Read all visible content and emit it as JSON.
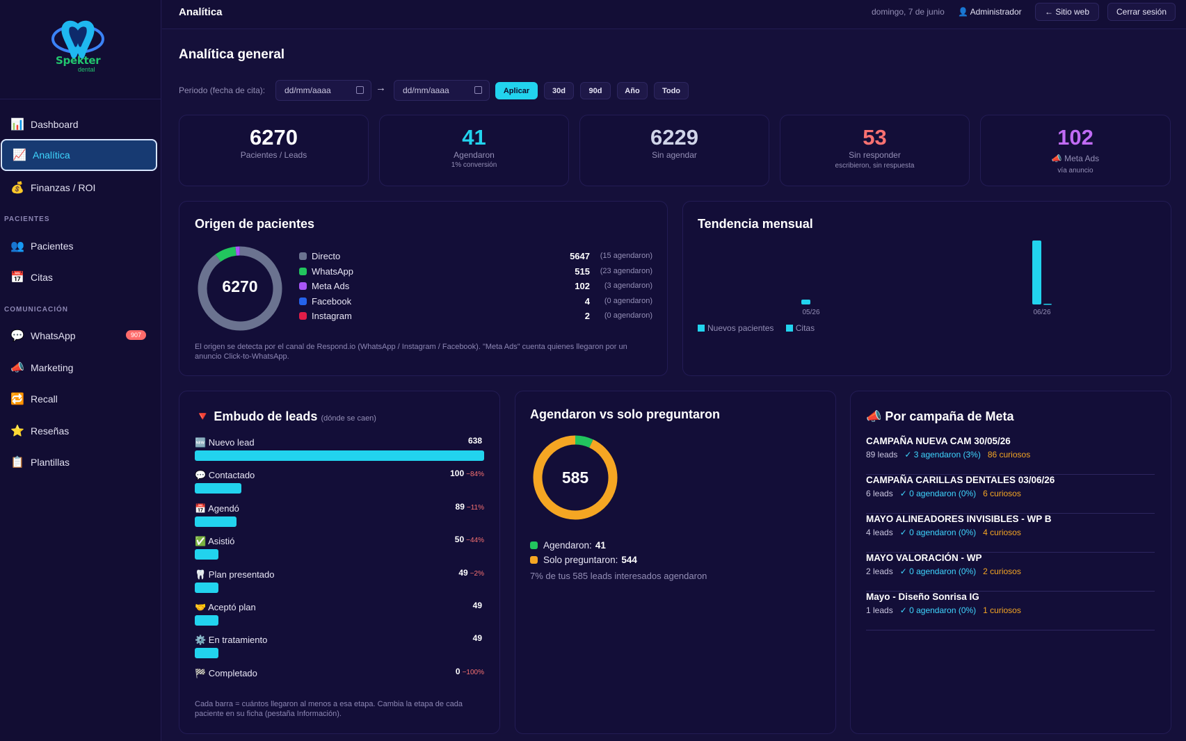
{
  "brand": {
    "name": "Spekter",
    "sub": "dental"
  },
  "sidebar": {
    "items": [
      {
        "label": "Dashboard",
        "icon": "📊"
      },
      {
        "label": "Analítica",
        "icon": "📈"
      },
      {
        "label": "Finanzas / ROI",
        "icon": "💰"
      },
      {
        "label": "Pacientes",
        "icon": "👥"
      },
      {
        "label": "Citas",
        "icon": "📅"
      },
      {
        "label": "WhatsApp",
        "icon": "💬",
        "badge": "907"
      },
      {
        "label": "Marketing",
        "icon": "📣"
      },
      {
        "label": "Recall",
        "icon": "🔁"
      },
      {
        "label": "Reseñas",
        "icon": "⭐"
      },
      {
        "label": "Plantillas",
        "icon": "📋"
      }
    ],
    "sections": {
      "pacientes": "PACIENTES",
      "comunicacion": "COMUNICACIÓN"
    }
  },
  "topbar": {
    "title": "Analítica",
    "date": "domingo, 7 de junio",
    "user": "👤 Administrador",
    "website": "← Sitio web",
    "logout": "Cerrar sesión"
  },
  "page": {
    "title": "Analítica general"
  },
  "filters": {
    "label": "Periodo (fecha de cita):",
    "from_placeholder": "dd/mm/aaaa",
    "to_placeholder": "dd/mm/aaaa",
    "arrow": "→",
    "apply": "Aplicar",
    "presets": [
      "30d",
      "90d",
      "Año",
      "Todo"
    ]
  },
  "kpis": [
    {
      "value": "6270",
      "label": "Pacientes / Leads",
      "sub": "",
      "color": "#ffffff"
    },
    {
      "value": "41",
      "label": "Agendaron",
      "sub": "1% conversión",
      "color": "#22d3ee"
    },
    {
      "value": "6229",
      "label": "Sin agendar",
      "sub": "",
      "color": "#d0d4e8"
    },
    {
      "value": "53",
      "label": "Sin responder",
      "sub": "escribieron, sin respuesta",
      "color": "#f87171"
    },
    {
      "value": "102",
      "label": "📣 Meta Ads",
      "sub": "vía anuncio",
      "color": "#c06bf5"
    }
  ],
  "origen": {
    "title": "Origen de pacientes",
    "total": "6270",
    "rows": [
      {
        "name": "Directo",
        "value": 5647,
        "value_label": "5647",
        "agendaron": "(15 agendaron)",
        "color": "#6b7390"
      },
      {
        "name": "WhatsApp",
        "value": 515,
        "value_label": "515",
        "agendaron": "(23 agendaron)",
        "color": "#22c55e"
      },
      {
        "name": "Meta Ads",
        "value": 102,
        "value_label": "102",
        "agendaron": "(3 agendaron)",
        "color": "#a855f7"
      },
      {
        "name": "Facebook",
        "value": 4,
        "value_label": "4",
        "agendaron": "(0 agendaron)",
        "color": "#2563eb"
      },
      {
        "name": "Instagram",
        "value": 2,
        "value_label": "2",
        "agendaron": "(0 agendaron)",
        "color": "#e11d48"
      }
    ],
    "note": "El origen se detecta por el canal de Respond.io (WhatsApp / Instagram / Facebook). \"Meta Ads\" cuenta quienes llegaron por un anuncio Click-to-WhatsApp."
  },
  "tendencia": {
    "title": "Tendencia mensual",
    "legend": [
      "Nuevos pacientes",
      "Citas"
    ]
  },
  "chart_data": {
    "type": "bar",
    "categories": [
      "05/26",
      "06/26"
    ],
    "series": [
      {
        "name": "Nuevos pacientes",
        "values": [
          7,
          92
        ],
        "color": "#22d3ee"
      },
      {
        "name": "Citas",
        "values": [
          0,
          1
        ],
        "color": "#22d3ee"
      }
    ],
    "title": "Tendencia mensual",
    "legend_position": "bottom-left"
  },
  "embudo": {
    "title": "🔻 Embudo de leads",
    "subtitle": "(dónde se caen)",
    "max": 638,
    "rows": [
      {
        "label": "🆕 Nuevo lead",
        "value": 638,
        "value_label": "638",
        "drop": ""
      },
      {
        "label": "💬 Contactado",
        "value": 100,
        "value_label": "100",
        "drop": "−84%"
      },
      {
        "label": "📅 Agendó",
        "value": 89,
        "value_label": "89",
        "drop": "−11%"
      },
      {
        "label": "✅ Asistió",
        "value": 50,
        "value_label": "50",
        "drop": "−44%"
      },
      {
        "label": "🦷 Plan presentado",
        "value": 49,
        "value_label": "49",
        "drop": "−2%"
      },
      {
        "label": "🤝 Aceptó plan",
        "value": 49,
        "value_label": "49",
        "drop": ""
      },
      {
        "label": "⚙️ En tratamiento",
        "value": 49,
        "value_label": "49",
        "drop": ""
      },
      {
        "label": "🏁 Completado",
        "value": 0,
        "value_label": "0",
        "drop": "−100%"
      }
    ],
    "note": "Cada barra = cuántos llegaron al menos a esa etapa. Cambia la etapa de cada paciente en su ficha (pestaña Información)."
  },
  "agendaron": {
    "title": "Agendaron vs solo preguntaron",
    "total": "585",
    "rows": [
      {
        "label": "Agendaron:",
        "value": 41,
        "value_label": "41",
        "color": "#22c55e"
      },
      {
        "label": "Solo preguntaron:",
        "value": 544,
        "value_label": "544",
        "color": "#f5a623"
      }
    ],
    "note": "7% de tus 585 leads interesados agendaron"
  },
  "campanas": {
    "title": "📣 Por campaña de Meta",
    "rows": [
      {
        "name": "CAMPAÑA NUEVA CAM 30/05/26",
        "leads": "89 leads",
        "ag": "✓ 3 agendaron (3%)",
        "cur": "86 curiosos"
      },
      {
        "name": "CAMPAÑA CARILLAS DENTALES 03/06/26",
        "leads": "6 leads",
        "ag": "✓ 0 agendaron (0%)",
        "cur": "6 curiosos"
      },
      {
        "name": "MAYO ALINEADORES INVISIBLES - WP B",
        "leads": "4 leads",
        "ag": "✓ 0 agendaron (0%)",
        "cur": "4 curiosos"
      },
      {
        "name": "MAYO VALORACIÓN - WP",
        "leads": "2 leads",
        "ag": "✓ 0 agendaron (0%)",
        "cur": "2 curiosos"
      },
      {
        "name": "Mayo - Diseño Sonrisa IG",
        "leads": "1 leads",
        "ag": "✓ 0 agendaron (0%)",
        "cur": "1 curiosos"
      }
    ]
  }
}
